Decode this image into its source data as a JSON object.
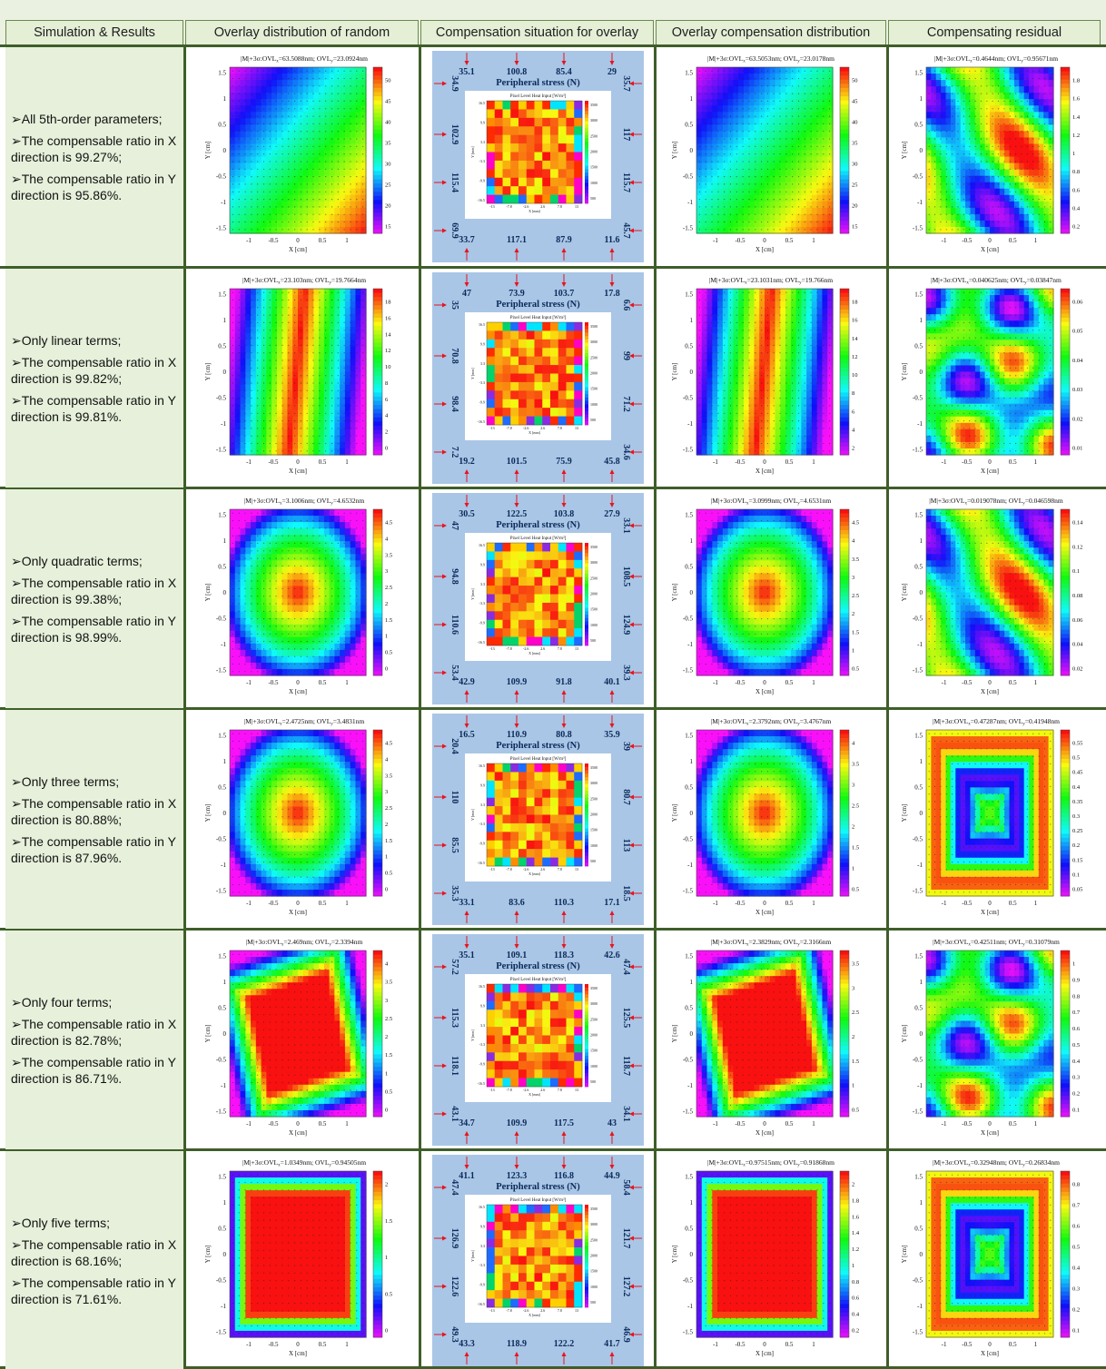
{
  "headers": [
    "Simulation & Results",
    "Overlay distribution of random",
    "Compensation situation for overlay",
    "Overlay compensation distribution",
    "Compensating residual"
  ],
  "common": {
    "xlabel": "X [cm]",
    "ylabel": "Y [cm]",
    "ticks": [
      "-1",
      "-0.5",
      "0",
      "0.5",
      "1"
    ],
    "yticks": [
      "1.5",
      "1",
      "0.5",
      "0",
      "-0.5",
      "-1",
      "-1.5"
    ],
    "stress_title": "Peripheral stress (N)",
    "heat_title": "Pixel Level Heat Input [W/m²]",
    "heat_xticks": [
      "-13",
      "-7.8",
      "-2.6",
      "2.6",
      "7.8",
      "13"
    ],
    "heat_yticks": [
      "16.5",
      "9.9",
      "3.3",
      "-3.3",
      "-9.9",
      "-16.5"
    ],
    "heat_xlabel": "X [mm]",
    "heat_ylabel": "Y [mm]",
    "heat_cbar": [
      "3500",
      "3000",
      "2500",
      "2000",
      "1500",
      "1000",
      "500"
    ]
  },
  "rows": [
    {
      "desc": [
        "➢All 5th-order parameters;",
        "➢The compensable ratio in X direction is 99.27%;",
        "➢The compensable ratio in Y direction is 95.86%."
      ],
      "random": {
        "title": "|M|+3σ:OVL",
        "vx": "=63.5088nm; OVL",
        "vy": "=23.0924nm",
        "cbar": [
          "50",
          "45",
          "40",
          "35",
          "30",
          "25",
          "20",
          "15"
        ],
        "pattern": "diag"
      },
      "stress": {
        "top": [
          "35.1",
          "100.8",
          "85.4",
          "29"
        ],
        "bottom": [
          "33.7",
          "117.1",
          "87.9",
          "11.6"
        ],
        "left": [
          "34.9",
          "102.9",
          "115.4",
          "69.9"
        ],
        "right": [
          "35.7",
          "117",
          "115.7",
          "45.7"
        ],
        "heat": "a"
      },
      "comp": {
        "title": "|M|+3σ:OVL",
        "vx": "=63.5053nm; OVL",
        "vy": "=23.0178nm",
        "cbar": [
          "50",
          "45",
          "40",
          "35",
          "30",
          "25",
          "20",
          "15"
        ],
        "pattern": "diag"
      },
      "resid": {
        "title": "|M|+3σ:OVL",
        "vx": "=0.4644nm; OVL",
        "vy": "=0.95671nm",
        "cbar": [
          "1.8",
          "1.6",
          "1.4",
          "1.2",
          "1",
          "0.8",
          "0.6",
          "0.4",
          "0.2"
        ],
        "pattern": "wave"
      }
    },
    {
      "desc": [
        "➢Only linear terms;",
        "➢The compensable ratio in X direction is 99.82%;",
        "➢The compensable ratio in Y direction is 99.81%."
      ],
      "random": {
        "title": "|M|+3σ:OVL",
        "vx": "=23.103nm; OVL",
        "vy": "=19.7664nm",
        "cbar": [
          "18",
          "16",
          "14",
          "12",
          "10",
          "8",
          "6",
          "4",
          "2",
          "0"
        ],
        "pattern": "stripe"
      },
      "stress": {
        "top": [
          "47",
          "73.9",
          "103.7",
          "17.8"
        ],
        "bottom": [
          "19.2",
          "101.5",
          "75.9",
          "45.8"
        ],
        "left": [
          "35",
          "70.8",
          "98.4",
          "7.2"
        ],
        "right": [
          "6.6",
          "99",
          "71.2",
          "34.6"
        ],
        "heat": "b"
      },
      "comp": {
        "title": "|M|+3σ:OVL",
        "vx": "=23.1031nm; OVL",
        "vy": "=19.766nm",
        "cbar": [
          "18",
          "16",
          "14",
          "12",
          "10",
          "8",
          "6",
          "4",
          "2"
        ],
        "pattern": "stripe"
      },
      "resid": {
        "title": "|M|+3σ:OVL",
        "vx": "=0.040625nm; OVL",
        "vy": "=0.03847nm",
        "cbar": [
          "0.06",
          "0.05",
          "0.04",
          "0.03",
          "0.02",
          "0.01"
        ],
        "pattern": "blob"
      }
    },
    {
      "desc": [
        "➢Only quadratic terms;",
        "➢The compensable ratio in X direction is 99.38%;",
        "➢The compensable ratio in Y direction is 98.99%."
      ],
      "random": {
        "title": "|M|+3σ:OVL",
        "vx": "=3.1006nm; OVL",
        "vy": "=4.6532nm",
        "cbar": [
          "4.5",
          "4",
          "3.5",
          "3",
          "2.5",
          "2",
          "1.5",
          "1",
          "0.5",
          "0"
        ],
        "pattern": "center"
      },
      "stress": {
        "top": [
          "30.5",
          "122.5",
          "103.8",
          "27.9"
        ],
        "bottom": [
          "42.9",
          "109.9",
          "91.8",
          "40.1"
        ],
        "left": [
          "47",
          "94.8",
          "110.6",
          "53.4"
        ],
        "right": [
          "33.1",
          "108.5",
          "124.9",
          "39.3"
        ],
        "heat": "c"
      },
      "comp": {
        "title": "|M|+3σ:OVL",
        "vx": "=3.0999nm; OVL",
        "vy": "=4.6531nm",
        "cbar": [
          "4.5",
          "4",
          "3.5",
          "3",
          "2.5",
          "2",
          "1.5",
          "1",
          "0.5"
        ],
        "pattern": "center"
      },
      "resid": {
        "title": "|M|+3σ:OVL",
        "vx": "=0.019078nm; OVL",
        "vy": "=0.046598nm",
        "cbar": [
          "0.14",
          "0.12",
          "0.1",
          "0.08",
          "0.06",
          "0.04",
          "0.02"
        ],
        "pattern": "wave"
      }
    },
    {
      "desc": [
        "➢Only three terms;",
        "➢The compensable ratio in X direction is 80.88%;",
        "➢The compensable ratio in Y direction is 87.96%."
      ],
      "random": {
        "title": "|M|+3σ:OVL",
        "vx": "=2.4725nm; OVL",
        "vy": "=3.4831nm",
        "cbar": [
          "4.5",
          "4",
          "3.5",
          "3",
          "2.5",
          "2",
          "1.5",
          "1",
          "0.5",
          "0"
        ],
        "pattern": "center"
      },
      "stress": {
        "top": [
          "16.5",
          "110.9",
          "80.8",
          "35.9"
        ],
        "bottom": [
          "33.1",
          "83.6",
          "110.3",
          "17.1"
        ],
        "left": [
          "20.4",
          "110",
          "85.5",
          "35.3"
        ],
        "right": [
          "39",
          "80.7",
          "113",
          "18.5"
        ],
        "heat": "d"
      },
      "comp": {
        "title": "|M|+3σ:OVL",
        "vx": "=2.3792nm; OVL",
        "vy": "=3.4767nm",
        "cbar": [
          "4",
          "3.5",
          "3",
          "2.5",
          "2",
          "1.5",
          "1",
          "0.5"
        ],
        "pattern": "center"
      },
      "resid": {
        "title": "|M|+3σ:OVL",
        "vx": "=0.47287nm; OVL",
        "vy": "=0.41948nm",
        "cbar": [
          "0.55",
          "0.5",
          "0.45",
          "0.4",
          "0.35",
          "0.3",
          "0.25",
          "0.2",
          "0.15",
          "0.1",
          "0.05"
        ],
        "pattern": "ring"
      }
    },
    {
      "desc": [
        "➢Only four terms;",
        "➢The compensable ratio in X direction is 82.78%;",
        "➢The compensable ratio in Y direction is 86.71%."
      ],
      "random": {
        "title": "|M|+3σ:OVL",
        "vx": "=2.469nm; OVL",
        "vy": "=2.3394nm",
        "cbar": [
          "4",
          "3.5",
          "3",
          "2.5",
          "2",
          "1.5",
          "1",
          "0.5",
          "0"
        ],
        "pattern": "diamond"
      },
      "stress": {
        "top": [
          "35.1",
          "109.1",
          "118.3",
          "42.6"
        ],
        "bottom": [
          "34.7",
          "109.9",
          "117.5",
          "43"
        ],
        "left": [
          "57.2",
          "115.3",
          "118.1",
          "43.1"
        ],
        "right": [
          "47.4",
          "125.5",
          "118.7",
          "34.1"
        ],
        "heat": "e"
      },
      "comp": {
        "title": "|M|+3σ:OVL",
        "vx": "=2.3829nm; OVL",
        "vy": "=2.3166nm",
        "cbar": [
          "3.5",
          "3",
          "2.5",
          "2",
          "1.5",
          "1",
          "0.5"
        ],
        "pattern": "diamond"
      },
      "resid": {
        "title": "|M|+3σ:OVL",
        "vx": "=0.42511nm; OVL",
        "vy": "=0.31079nm",
        "cbar": [
          "1",
          "0.9",
          "0.8",
          "0.7",
          "0.6",
          "0.5",
          "0.4",
          "0.3",
          "0.2",
          "0.1"
        ],
        "pattern": "blob"
      }
    },
    {
      "desc": [
        "➢Only five terms;",
        "➢The compensable ratio in X direction is 68.16%;",
        "➢The compensable ratio in Y direction is 71.61%."
      ],
      "random": {
        "title": "|M|+3σ:OVL",
        "vx": "=1.0349nm; OVL",
        "vy": "=0.94505nm",
        "cbar": [
          "2",
          "1.5",
          "1",
          "0.5",
          "0"
        ],
        "pattern": "square"
      },
      "stress": {
        "top": [
          "41.1",
          "123.3",
          "116.8",
          "44.9"
        ],
        "bottom": [
          "43.3",
          "118.9",
          "122.2",
          "41.7"
        ],
        "left": [
          "47.4",
          "126.9",
          "122.6",
          "49.3"
        ],
        "right": [
          "50.4",
          "121.7",
          "127.2",
          "46.9"
        ],
        "heat": "f"
      },
      "comp": {
        "title": "|M|+3σ:OVL",
        "vx": "=0.97515nm; OVL",
        "vy": "=0.91868nm",
        "cbar": [
          "2",
          "1.8",
          "1.6",
          "1.4",
          "1.2",
          "1",
          "0.8",
          "0.6",
          "0.4",
          "0.2"
        ],
        "pattern": "square"
      },
      "resid": {
        "title": "|M|+3σ:OVL",
        "vx": "=0.32948nm; OVL",
        "vy": "=0.26834nm",
        "cbar": [
          "0.8",
          "0.7",
          "0.6",
          "0.5",
          "0.4",
          "0.3",
          "0.2",
          "0.1"
        ],
        "pattern": "ring"
      }
    }
  ]
}
